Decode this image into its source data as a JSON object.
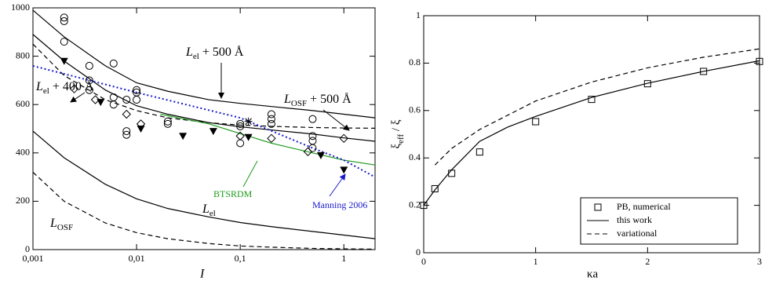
{
  "chart_data": [
    {
      "type": "line",
      "xscale": "log",
      "xlim": [
        0.001,
        2
      ],
      "ylim": [
        0,
        1000
      ],
      "xticks": [
        {
          "value": 0.001,
          "label": "0,001"
        },
        {
          "value": 0.01,
          "label": "0,01"
        },
        {
          "value": 0.1,
          "label": "0,1"
        },
        1
      ],
      "yticks": [
        0,
        200,
        400,
        600,
        800,
        1000
      ],
      "xlabel": "I",
      "annotations": [
        {
          "main": "L",
          "sub": "el",
          "rest": " + 400 Å"
        },
        {
          "main": "L",
          "sub": "el",
          "rest": " + 500 Å"
        },
        {
          "main": "L",
          "sub": "OSF",
          "rest": " + 500 Å"
        },
        {
          "main": "BTSRDM"
        },
        {
          "main": "Manning 2006"
        },
        {
          "main": "L",
          "sub": "el"
        },
        {
          "main": "L",
          "sub": "OSF"
        }
      ],
      "series": [
        {
          "style": "solid",
          "color": "#000000",
          "x": [
            0.001,
            0.002,
            0.005,
            0.01,
            0.02,
            0.05,
            0.1,
            0.2,
            0.5,
            1,
            2
          ],
          "values": [
            990,
            880,
            760,
            690,
            655,
            620,
            605,
            592,
            575,
            560,
            545
          ]
        },
        {
          "style": "solid",
          "color": "#000000",
          "x": [
            0.001,
            0.002,
            0.005,
            0.01,
            0.02,
            0.05,
            0.1,
            0.2,
            0.5,
            1,
            2
          ],
          "values": [
            890,
            780,
            660,
            595,
            560,
            525,
            508,
            495,
            478,
            462,
            448
          ]
        },
        {
          "style": "dashed",
          "color": "#000000",
          "x": [
            0.001,
            0.002,
            0.005,
            0.01,
            0.02,
            0.05,
            0.1,
            0.2,
            0.5,
            1,
            2
          ],
          "values": [
            850,
            720,
            620,
            575,
            545,
            525,
            515,
            510,
            505,
            503,
            502
          ]
        },
        {
          "style": "solid",
          "color": "#000000",
          "x": [
            0.001,
            0.002,
            0.005,
            0.01,
            0.02,
            0.05,
            0.1,
            0.2,
            0.5,
            1,
            2
          ],
          "values": [
            490,
            380,
            270,
            210,
            170,
            135,
            112,
            95,
            75,
            60,
            45
          ]
        },
        {
          "style": "dashed",
          "color": "#000000",
          "x": [
            0.001,
            0.002,
            0.005,
            0.01,
            0.02,
            0.05,
            0.1,
            0.2,
            0.5,
            1,
            2
          ],
          "values": [
            320,
            200,
            110,
            70,
            45,
            25,
            15,
            10,
            5,
            3,
            2
          ]
        },
        {
          "style": "solid",
          "color": "#1a9a1a",
          "x": [
            0.017,
            0.05,
            0.1,
            0.2,
            0.5,
            1,
            2
          ],
          "values": [
            560,
            520,
            480,
            440,
            400,
            370,
            350
          ]
        },
        {
          "style": "dotted",
          "color": "#1a1acc",
          "x": [
            0.001,
            0.01,
            0.1,
            0.5,
            1,
            2
          ],
          "values": [
            760,
            650,
            545,
            420,
            370,
            300
          ]
        },
        {
          "style": "none",
          "marker": "circle",
          "color": "#000000",
          "x": [
            0.002,
            0.002,
            0.002,
            0.0035,
            0.0035,
            0.0035,
            0.006,
            0.006,
            0.006,
            0.008,
            0.008,
            0.008,
            0.01,
            0.01,
            0.01,
            0.02,
            0.02,
            0.1,
            0.1,
            0.1,
            0.2,
            0.2,
            0.2,
            0.5,
            0.5,
            0.5,
            0.5
          ],
          "values": [
            960,
            945,
            860,
            760,
            700,
            660,
            770,
            630,
            600,
            490,
            475,
            620,
            660,
            650,
            620,
            530,
            520,
            520,
            510,
            440,
            560,
            540,
            520,
            540,
            470,
            450,
            420
          ]
        },
        {
          "style": "none",
          "marker": "triangle-down",
          "color": "#000000",
          "x": [
            0.002,
            0.0045,
            0.011,
            0.028,
            0.055,
            0.12,
            0.6,
            1
          ],
          "values": [
            780,
            610,
            500,
            470,
            490,
            465,
            390,
            330
          ]
        },
        {
          "style": "none",
          "marker": "diamond",
          "color": "#000000",
          "x": [
            0.0025,
            0.004,
            0.008,
            0.011,
            0.1,
            0.2,
            0.45,
            1
          ],
          "values": [
            665,
            620,
            560,
            520,
            470,
            460,
            405,
            460
          ]
        },
        {
          "style": "none",
          "marker": "star",
          "color": "#000000",
          "x": [
            0.12
          ],
          "values": [
            530
          ]
        }
      ]
    },
    {
      "type": "line",
      "xlim": [
        0,
        3
      ],
      "ylim": [
        0,
        1
      ],
      "xticks": [
        0,
        1,
        2,
        3
      ],
      "yticks": [
        0,
        0.2,
        0.4,
        0.6,
        0.8,
        1
      ],
      "xlabel": "κa",
      "ylabel": {
        "main": "ξ",
        "sub": "eff",
        "rest": " / ξ"
      },
      "series": [
        {
          "name": "PB, numerical",
          "style": "none",
          "marker": "square",
          "color": "#000000",
          "x": [
            0,
            0.1,
            0.25,
            0.5,
            1,
            1.5,
            2,
            2.5,
            3
          ],
          "values": [
            0.2,
            0.27,
            0.335,
            0.425,
            0.553,
            0.647,
            0.713,
            0.765,
            0.807
          ]
        },
        {
          "name": "this work",
          "style": "solid",
          "color": "#000000",
          "x": [
            0,
            0.1,
            0.25,
            0.5,
            0.75,
            1,
            1.5,
            2,
            2.5,
            3
          ],
          "values": [
            0.2,
            0.265,
            0.35,
            0.47,
            0.53,
            0.575,
            0.655,
            0.715,
            0.765,
            0.81
          ]
        },
        {
          "name": "variational",
          "style": "dashed",
          "color": "#000000",
          "x": [
            0.1,
            0.25,
            0.5,
            1,
            1.5,
            2,
            2.5,
            3
          ],
          "values": [
            0.37,
            0.44,
            0.52,
            0.64,
            0.72,
            0.78,
            0.825,
            0.86
          ]
        }
      ]
    }
  ]
}
